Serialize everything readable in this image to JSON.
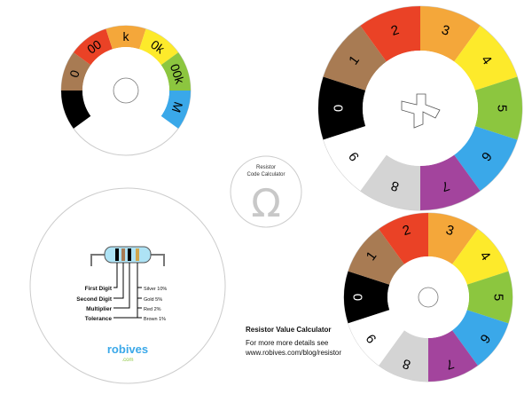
{
  "colors": {
    "black": "#000000",
    "brown": "#a87b53",
    "red": "#ea4226",
    "orange": "#f4a73a",
    "yellow": "#fdea2b",
    "green": "#8cc63f",
    "blue": "#3aa8e9",
    "violet": "#a3449d",
    "grey": "#d4d4d4",
    "white": "#ffffff",
    "gold": "#cfa64d",
    "silver": "#c0c0c0"
  },
  "large_wheel_digits": [
    "0",
    "1",
    "2",
    "3",
    "4",
    "5",
    "6",
    "7",
    "8",
    "9"
  ],
  "multiplier_wheel_labels": [
    "0",
    "00",
    "k",
    "0k",
    "00k",
    "M"
  ],
  "center_badge": {
    "line1": "Resistor",
    "line2": "Code Calculator",
    "symbol": "Ω"
  },
  "legend": {
    "left_labels": [
      "First Digit",
      "Second Digit",
      "Multiplier",
      "Tolerance"
    ],
    "right_labels": [
      "Silver 10%",
      "Gold 5%",
      "Red 2%",
      "Brown 1%"
    ]
  },
  "brand": {
    "name": "robives",
    "domain": ".com"
  },
  "caption": {
    "title": "Resistor Value Calculator",
    "line1": "For more more details see",
    "line2": "www.robives.com/blog/resistor"
  }
}
